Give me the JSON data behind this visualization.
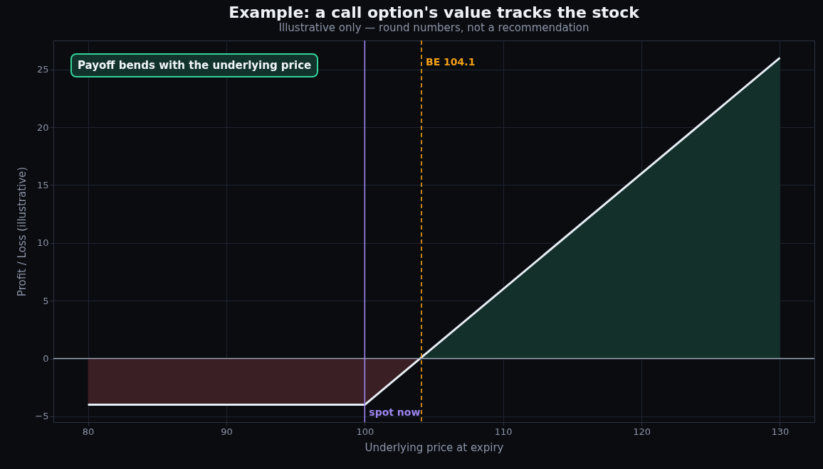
{
  "chart_data": {
    "type": "line",
    "title": "Example: a call option's value tracks the stock",
    "subtitle": "Illustrative only — round numbers, not a recommendation",
    "xlabel": "Underlying price at expiry",
    "ylabel": "Profit / Loss (illustrative)",
    "xlim": [
      77.5,
      132.5
    ],
    "xticks": [
      80,
      90,
      100,
      110,
      120,
      130
    ],
    "ylim": [
      -5.5,
      27.5
    ],
    "yticks": [
      -5,
      0,
      5,
      10,
      15,
      20,
      25
    ],
    "grid": true,
    "series": [
      {
        "type": "area",
        "color": "#3a1f24",
        "x": [
          80,
          100,
          104.1
        ],
        "values": [
          -4,
          -4,
          0
        ]
      },
      {
        "type": "area",
        "color": "#14302b",
        "x": [
          104.1,
          130
        ],
        "values": [
          0,
          26
        ]
      },
      {
        "color": "#e8eef5",
        "x": [
          80,
          100,
          130
        ],
        "values": [
          -4,
          -4,
          26
        ]
      }
    ],
    "ref_lines": [
      {
        "axis": "y",
        "value": 0,
        "color": "#9aa6b8",
        "line_style": "solid"
      },
      {
        "axis": "x",
        "value": 100,
        "label": "spot now",
        "color": "#9f86f0",
        "line_style": "solid"
      },
      {
        "axis": "x",
        "value": 104.1,
        "label": "BE 104.1",
        "color": "#f5a014",
        "line_style": "dashed"
      }
    ],
    "annotations": [
      "Payoff bends with the underlying price"
    ]
  }
}
